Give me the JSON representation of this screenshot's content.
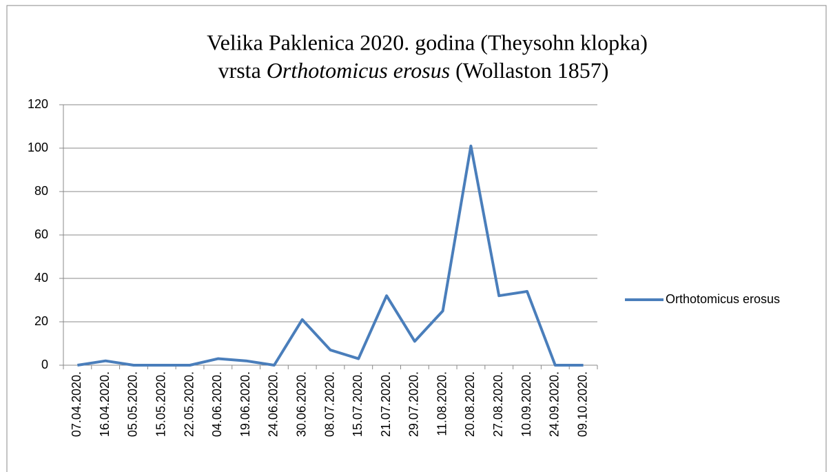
{
  "chart_data": {
    "type": "line",
    "title": [
      "Velika Paklenica 2020. godina (Theysohn klopka)",
      "vrsta",
      "Orthotomicus erosus",
      "(Wollaston 1857)"
    ],
    "categories": [
      "07.04.2020.",
      "16.04.2020.",
      "05.05.2020.",
      "15.05.2020.",
      "22.05.2020.",
      "04.06.2020.",
      "19.06.2020.",
      "24.06.2020.",
      "30.06.2020.",
      "08.07.2020.",
      "15.07.2020.",
      "21.07.2020.",
      "29.07.2020.",
      "11.08.2020.",
      "20.08.2020.",
      "27.08.2020.",
      "10.09.2020.",
      "24.09.2020.",
      "09.10.2020."
    ],
    "series": [
      {
        "name": "Orthotomicus erosus",
        "color": "#4a7ebb",
        "values": [
          0,
          2,
          0,
          0,
          0,
          3,
          2,
          0,
          21,
          7,
          3,
          32,
          11,
          25,
          101,
          32,
          34,
          0,
          0
        ]
      }
    ],
    "ylim": [
      0,
      120
    ],
    "yticks": [
      0,
      20,
      40,
      60,
      80,
      100,
      120
    ],
    "grid": true,
    "legend": "right"
  }
}
